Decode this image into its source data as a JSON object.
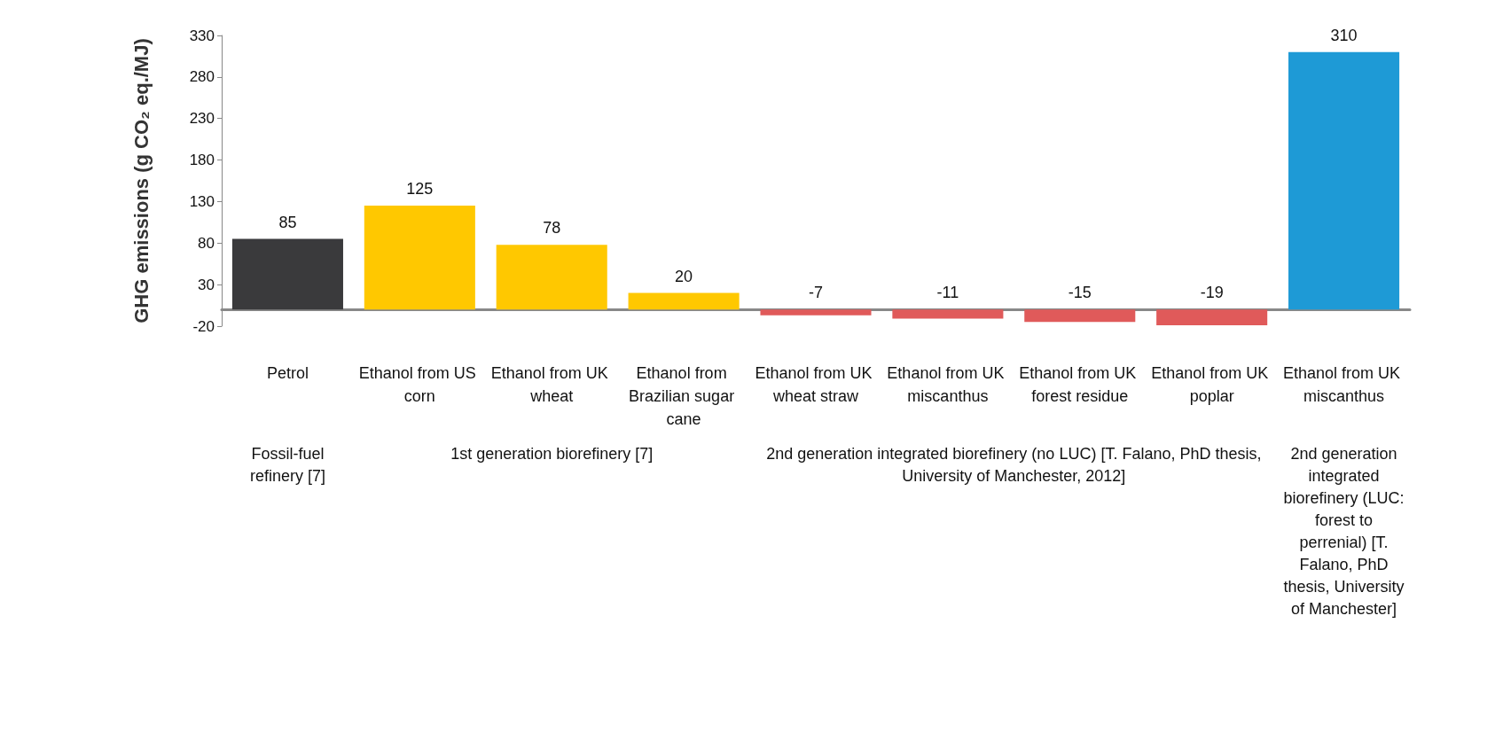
{
  "chart_data": {
    "type": "bar",
    "ylabel": "GHG emissions (g CO₂ eq./MJ)",
    "categories": [
      "Petrol",
      "Ethanol from US corn",
      "Ethanol from UK wheat",
      "Ethanol from Brazilian sugar cane",
      "Ethanol from UK wheat straw",
      "Ethanol from UK miscanthus",
      "Ethanol from UK forest residue",
      "Ethanol from UK poplar",
      "Ethanol from UK miscanthus"
    ],
    "values": [
      85,
      125,
      78,
      20,
      -7,
      -11,
      -15,
      -19,
      310
    ],
    "colors": [
      "#3a3a3c",
      "#ffc800",
      "#ffc800",
      "#ffc800",
      "#e05a5a",
      "#e05a5a",
      "#e05a5a",
      "#e05a5a",
      "#1e9ad6"
    ],
    "ylim": [
      -20,
      330
    ],
    "yticks": [
      -20,
      30,
      80,
      130,
      180,
      230,
      280,
      330
    ],
    "data_labels": true,
    "grid": false,
    "annotations": [
      "Fossil-fuel refinery [7]",
      "1st generation biorefinery [7]",
      "2nd generation integrated biorefinery (no LUC) [T. Falano, PhD thesis, University of Manchester, 2012]",
      "2nd generation integrated biorefinery (LUC: forest to perrenial) [T. Falano, PhD thesis, University of Manchester]"
    ]
  }
}
